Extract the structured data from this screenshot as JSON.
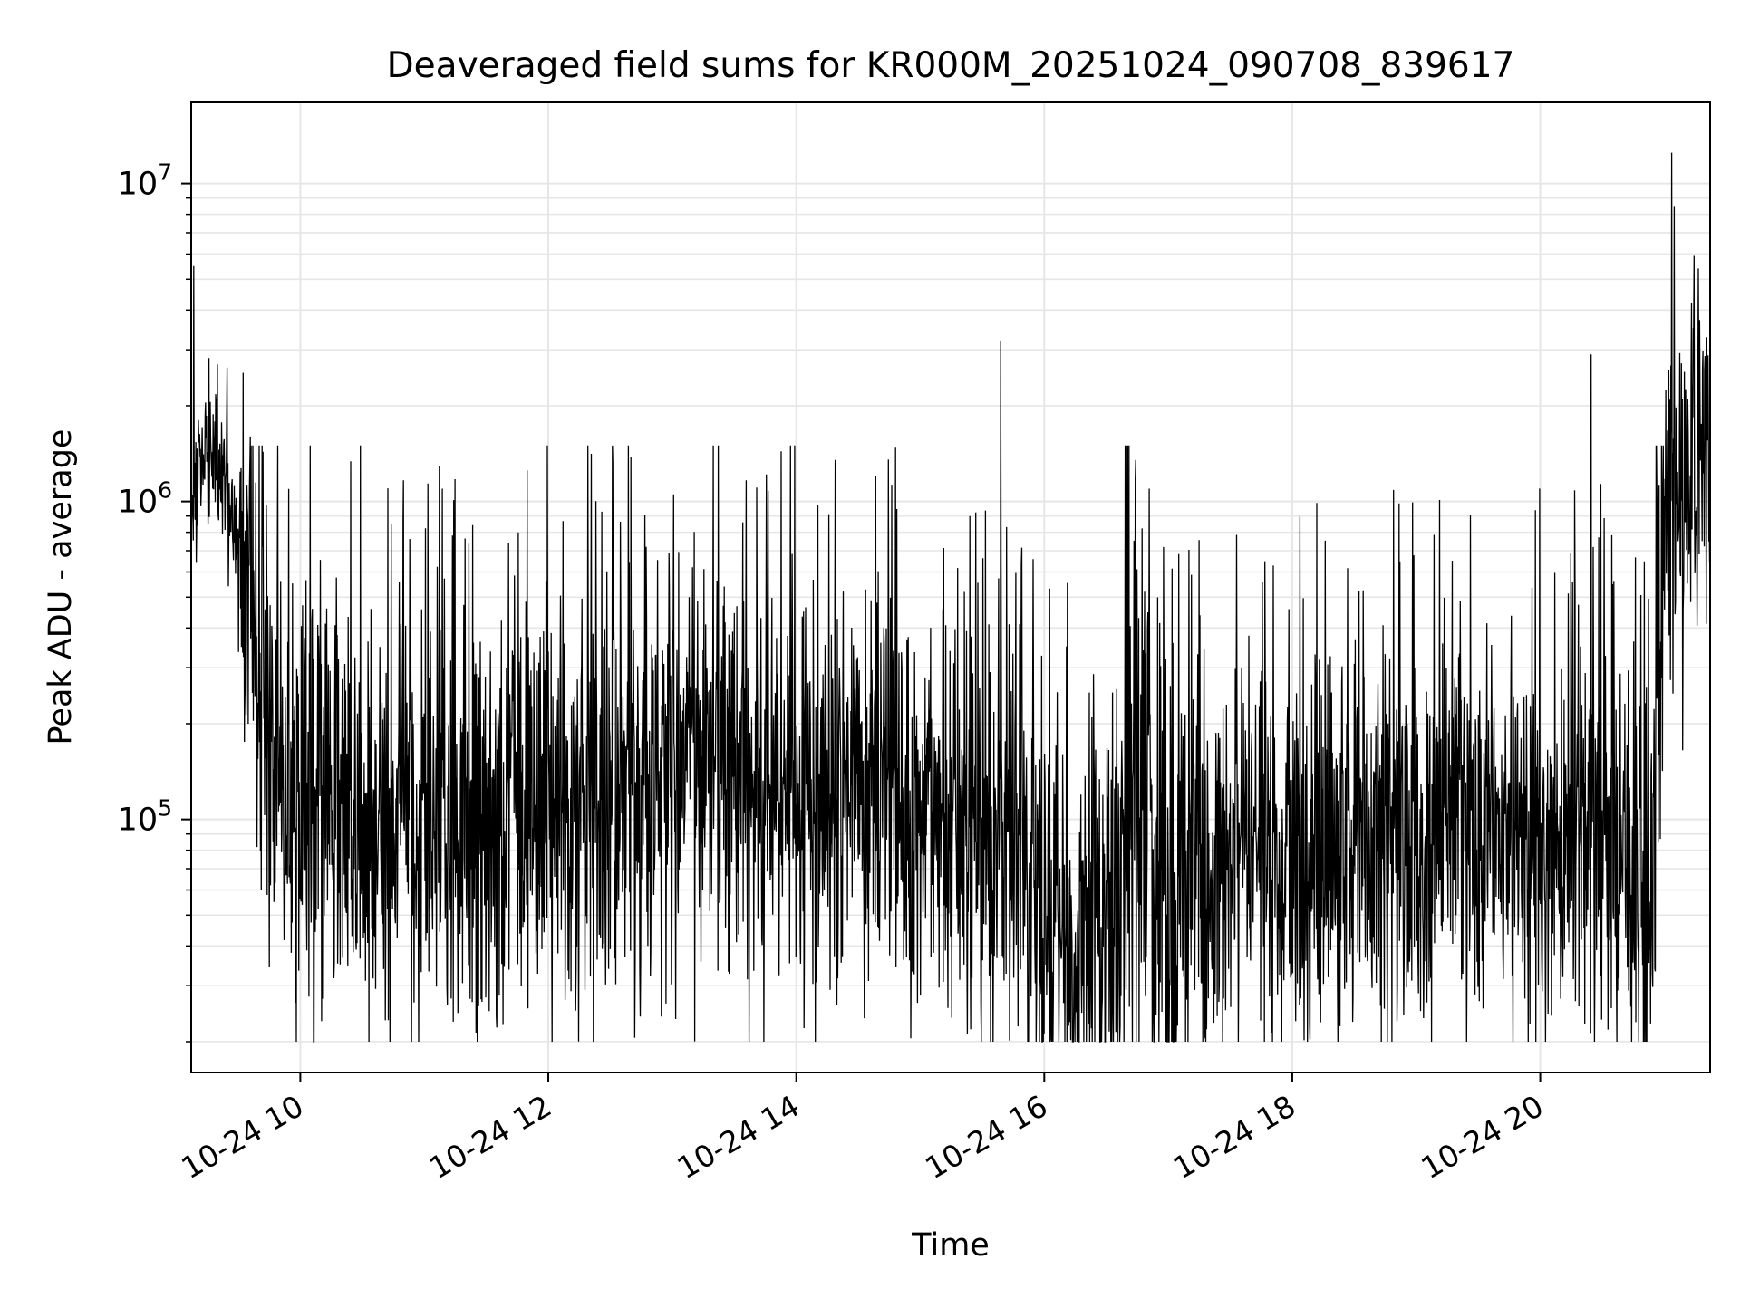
{
  "chart_data": {
    "type": "line",
    "title": "Deaveraged field sums for KR000M_20251024_090708_839617",
    "xlabel": "Time",
    "ylabel": "Peak ADU - average",
    "yscale": "log",
    "xlim": [
      9.12,
      21.37
    ],
    "ylim": [
      16000,
      18000000
    ],
    "grid": true,
    "x_ticks": [
      {
        "value": 10,
        "label": "10-24 10"
      },
      {
        "value": 12,
        "label": "10-24 12"
      },
      {
        "value": 14,
        "label": "10-24 14"
      },
      {
        "value": 16,
        "label": "10-24 16"
      },
      {
        "value": 18,
        "label": "10-24 18"
      },
      {
        "value": 20,
        "label": "10-24 20"
      }
    ],
    "y_ticks": [
      {
        "value": 100000,
        "base": "10",
        "exp": "5"
      },
      {
        "value": 1000000,
        "base": "10",
        "exp": "6"
      },
      {
        "value": 10000000,
        "base": "10",
        "exp": "7"
      }
    ],
    "series": [
      {
        "name": "field sum",
        "color": "#000000",
        "profile_hours": [
          9.12,
          9.2,
          9.3,
          9.4,
          9.5,
          9.6,
          9.7,
          9.8,
          10.0,
          10.5,
          11.0,
          11.5,
          12.0,
          12.5,
          13.0,
          13.5,
          13.7,
          14.0,
          14.5,
          15.0,
          15.5,
          15.8,
          16.0,
          16.5,
          16.75,
          17.0,
          17.5,
          18.0,
          18.5,
          19.0,
          19.5,
          20.0,
          20.4,
          20.5,
          20.9,
          21.0,
          21.2,
          21.37
        ],
        "profile_median": [
          900000,
          1500000,
          1400000,
          1200000,
          700000,
          450000,
          250000,
          150000,
          120000,
          110000,
          100000,
          105000,
          115000,
          130000,
          150000,
          160000,
          110000,
          140000,
          120000,
          100000,
          90000,
          85000,
          45000,
          42000,
          150000,
          50000,
          90000,
          70000,
          80000,
          90000,
          95000,
          90000,
          80000,
          75000,
          70000,
          900000,
          1500000,
          1800000
        ],
        "spikes": [
          {
            "x": 9.14,
            "y": 5500000
          },
          {
            "x": 9.33,
            "y": 2700000
          },
          {
            "x": 15.65,
            "y": 3200000
          },
          {
            "x": 20.41,
            "y": 2900000
          },
          {
            "x": 21.06,
            "y": 12500000
          },
          {
            "x": 21.08,
            "y": 8500000
          },
          {
            "x": 21.22,
            "y": 4200000
          }
        ],
        "min_value": 20000,
        "max_value": 12500000
      }
    ]
  }
}
